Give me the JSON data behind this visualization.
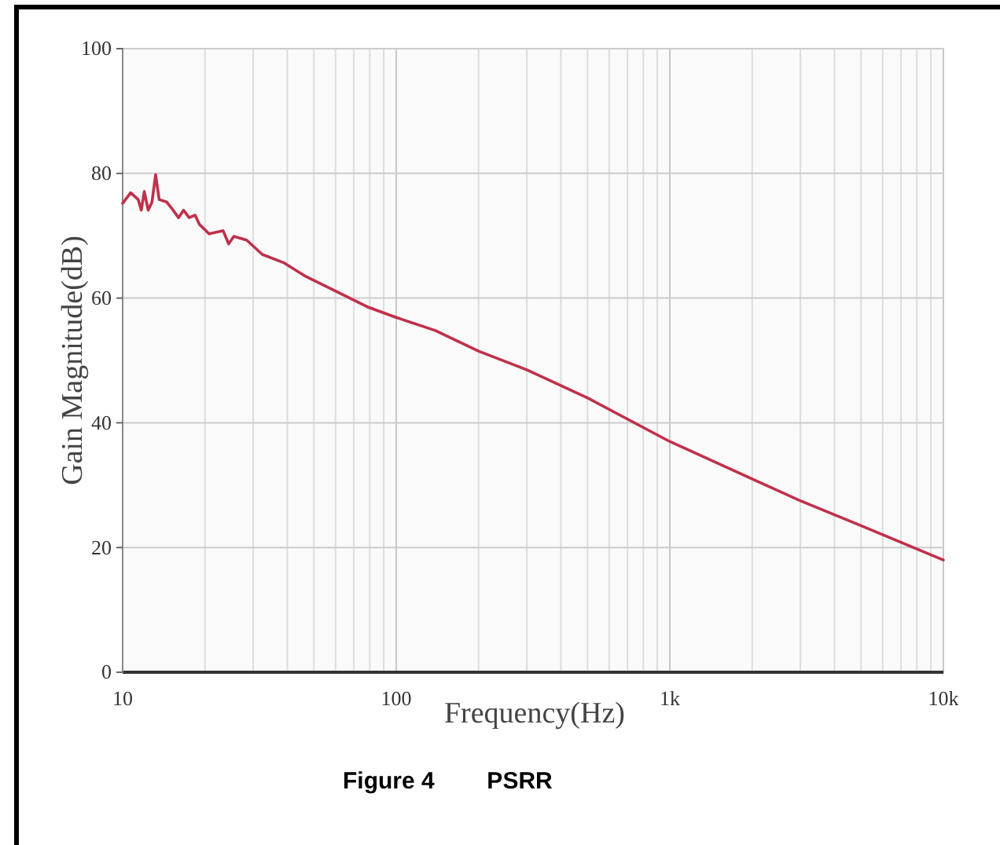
{
  "chart_data": {
    "type": "line",
    "xlabel": "Frequency(Hz)",
    "ylabel": "Gain Magnitude(dB)",
    "annotations": [
      "Figure 4        PSRR"
    ],
    "log": "x",
    "grid": true,
    "marker": "none",
    "line_style": "solid",
    "xlim": [
      10,
      10000
    ],
    "xticks": [
      10,
      100,
      {
        "value": 1000,
        "label": "1k"
      },
      {
        "value": 10000,
        "label": "10k"
      }
    ],
    "ylim": [
      0,
      100
    ],
    "yticks": [
      0,
      20,
      40,
      60,
      80,
      100
    ],
    "series": [
      {
        "color": "#c0304a",
        "x": [
          10,
          10.7,
          11.4,
          11.7,
          12.0,
          12.4,
          12.8,
          13.2,
          13.6,
          14.5,
          15.3,
          16.0,
          16.7,
          17.5,
          18.4,
          19.1,
          20.7,
          23.3,
          24.4,
          25.5,
          28.4,
          32.4,
          38.7,
          46.2,
          60.2,
          78.4,
          100,
          139,
          200,
          300,
          500,
          1000,
          2000,
          3000,
          5000,
          10000
        ],
        "values": [
          75.2,
          76.9,
          75.8,
          74.1,
          77.1,
          74.1,
          75.4,
          79.8,
          75.8,
          75.4,
          74.1,
          72.9,
          74.1,
          72.9,
          73.3,
          71.8,
          70.3,
          70.8,
          68.7,
          69.9,
          69.3,
          67.0,
          65.7,
          63.6,
          61.1,
          58.6,
          56.9,
          54.8,
          51.5,
          48.5,
          44.0,
          37.0,
          31.0,
          27.5,
          23.5,
          18.0
        ]
      }
    ]
  }
}
